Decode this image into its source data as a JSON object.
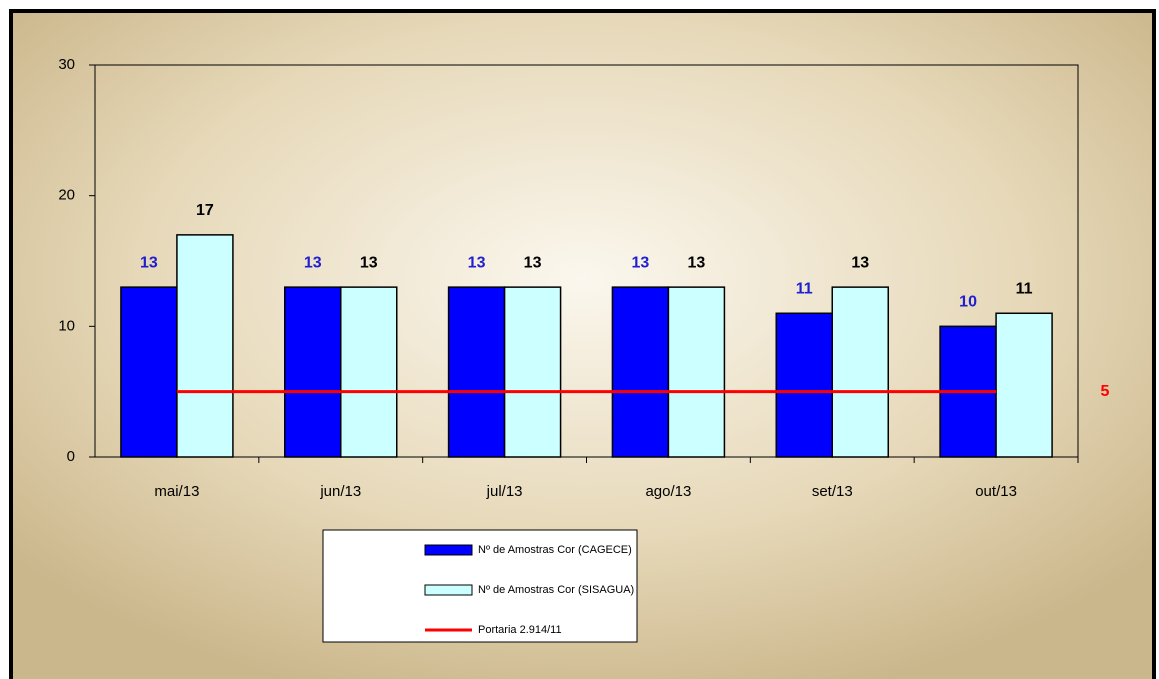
{
  "chart_data": {
    "type": "bar",
    "categories": [
      "mai/13",
      "jun/13",
      "jul/13",
      "ago/13",
      "set/13",
      "out/13"
    ],
    "series": [
      {
        "name": "Nº de Amostras Cor (CAGECE)",
        "color": "#0000ff",
        "label_color": "#1f1fd0",
        "values": [
          13,
          13,
          13,
          13,
          11,
          10
        ]
      },
      {
        "name": "Nº de Amostras Cor (SISAGUA)",
        "color": "#ccffff",
        "label_color": "#000000",
        "values": [
          17,
          13,
          13,
          13,
          13,
          11
        ]
      },
      {
        "name": "Portaria 2.914/11",
        "type": "line",
        "color": "#ff0000",
        "values": [
          5,
          5,
          5,
          5,
          5,
          5
        ]
      }
    ],
    "ylim": [
      0,
      30
    ],
    "yticks": [
      0,
      10,
      20,
      30
    ],
    "grid": false,
    "legend": "bottom"
  }
}
